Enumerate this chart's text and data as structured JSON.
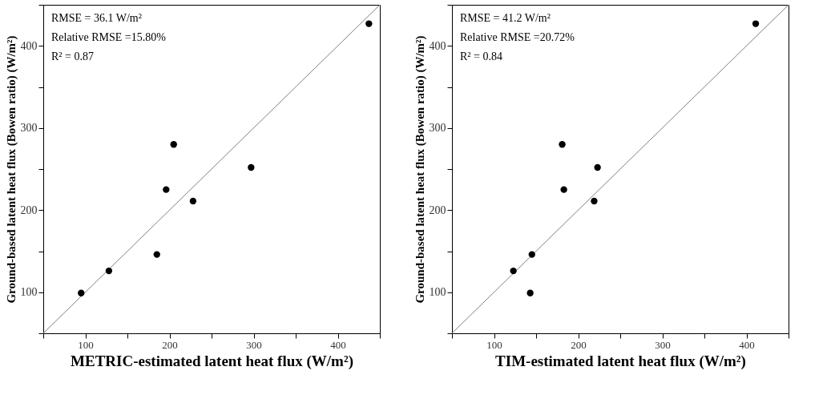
{
  "chart_data": [
    {
      "type": "scatter",
      "xlabel": "METRIC-estimated latent heat flux (W/m²)",
      "ylabel": "Ground-based latent heat flux (Bowen ratio) (W/m²)",
      "annotations": [
        "RMSE = 36.1 W/m²",
        "Relative RMSE =15.80%",
        "R² = 0.87"
      ],
      "xlim": [
        50,
        450
      ],
      "ylim": [
        50,
        450
      ],
      "xticks": [
        {
          "value": 50,
          "label": null
        },
        100,
        {
          "value": 150,
          "label": null
        },
        200,
        {
          "value": 250,
          "label": null
        },
        300,
        {
          "value": 350,
          "label": null
        },
        400,
        {
          "value": 450,
          "label": null
        }
      ],
      "yticks": [
        {
          "value": 50,
          "label": null
        },
        100,
        {
          "value": 150,
          "label": null
        },
        200,
        {
          "value": 250,
          "label": null
        },
        300,
        {
          "value": 350,
          "label": null
        },
        400,
        {
          "value": 450,
          "label": null
        }
      ],
      "grid": false,
      "series": [
        {
          "type": "line",
          "marker": "none",
          "color": "#808080",
          "x": [
            50,
            450
          ],
          "values": [
            50,
            450
          ]
        },
        {
          "marker": "circle",
          "color": "#000000",
          "x": [
            95,
            128,
            185,
            196,
            205,
            228,
            297,
            437
          ],
          "values": [
            99,
            126,
            146,
            225,
            280,
            211,
            252,
            427
          ]
        }
      ]
    },
    {
      "type": "scatter",
      "xlabel": "TIM-estimated latent heat flux (W/m²)",
      "ylabel": "Ground-based latent heat flux (Bowen ratio) (W/m²)",
      "annotations": [
        "RMSE = 41.2 W/m²",
        "Relative RMSE =20.72%",
        "R² = 0.84"
      ],
      "xlim": [
        50,
        450
      ],
      "ylim": [
        50,
        450
      ],
      "xticks": [
        {
          "value": 50,
          "label": null
        },
        100,
        {
          "value": 150,
          "label": null
        },
        200,
        {
          "value": 250,
          "label": null
        },
        300,
        {
          "value": 350,
          "label": null
        },
        400,
        {
          "value": 450,
          "label": null
        }
      ],
      "yticks": [
        {
          "value": 50,
          "label": null
        },
        100,
        {
          "value": 150,
          "label": null
        },
        200,
        {
          "value": 250,
          "label": null
        },
        300,
        {
          "value": 350,
          "label": null
        },
        400,
        {
          "value": 450,
          "label": null
        }
      ],
      "grid": false,
      "series": [
        {
          "type": "line",
          "marker": "none",
          "color": "#808080",
          "x": [
            50,
            450
          ],
          "values": [
            50,
            450
          ]
        },
        {
          "marker": "circle",
          "color": "#000000",
          "x": [
            123,
            143,
            145,
            181,
            183,
            219,
            223,
            411
          ],
          "values": [
            126,
            99,
            146,
            280,
            225,
            211,
            252,
            427
          ]
        }
      ]
    }
  ]
}
